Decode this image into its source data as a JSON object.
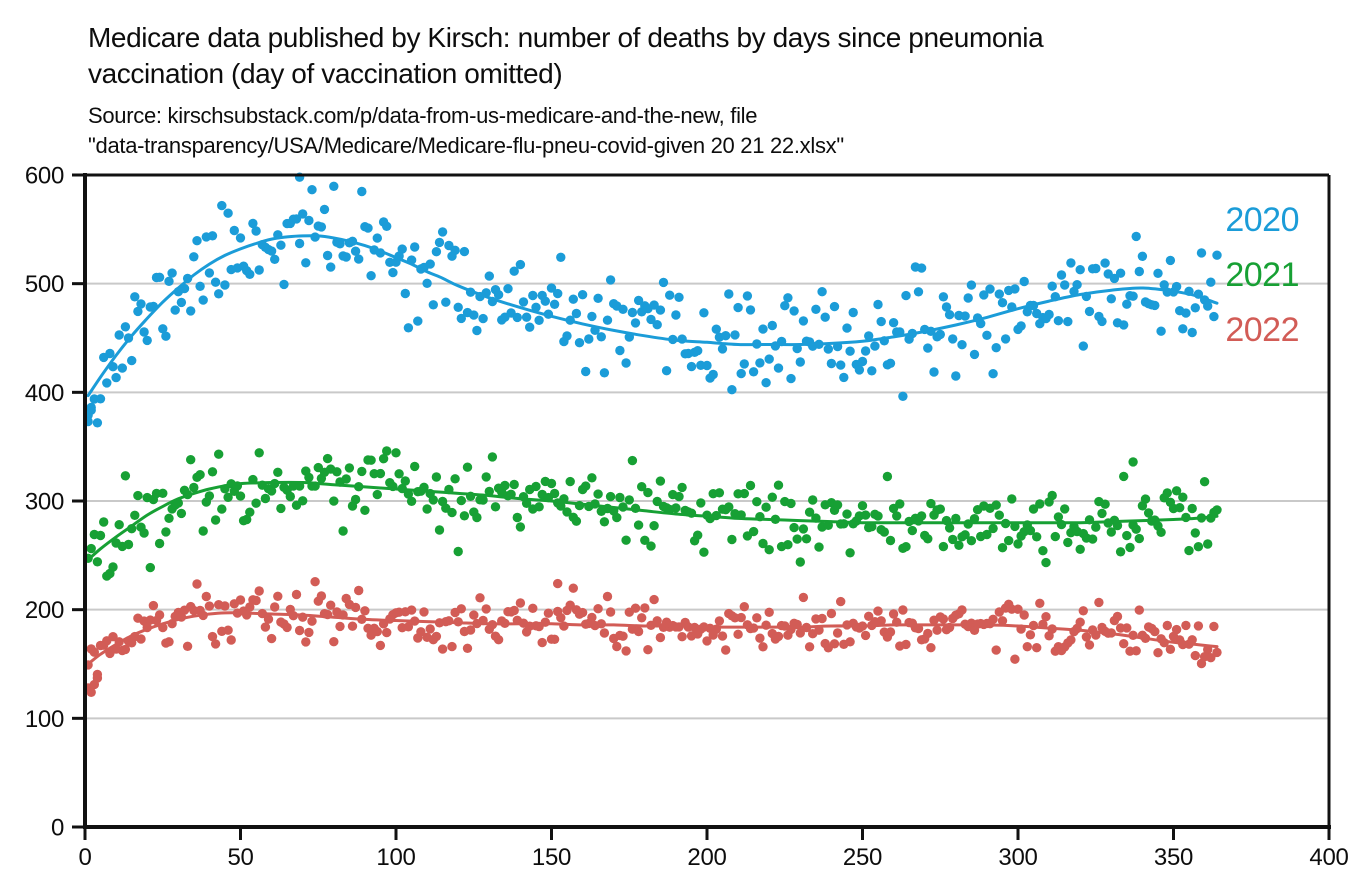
{
  "title": {
    "line1": "Medicare data published by Kirsch: number of deaths by days since pneumonia",
    "line2": "vaccination (day of vaccination omitted)"
  },
  "source": {
    "line1": "Source: kirschsubstack.com/p/data-from-us-medicare-and-the-new, file",
    "line2": "\"data-transparency/USA/Medicare/Medicare-flu-pneu-covid-given 20 21 22.xlsx\""
  },
  "chart_data": {
    "type": "scatter",
    "title": "Medicare data published by Kirsch: number of deaths by days since pneumonia vaccination (day of vaccination omitted)",
    "xlabel": "",
    "ylabel": "",
    "xlim": [
      0,
      400
    ],
    "ylim": [
      0,
      600
    ],
    "x_ticks": [
      0,
      50,
      100,
      150,
      200,
      250,
      300,
      350,
      400
    ],
    "y_ticks": [
      0,
      100,
      200,
      300,
      400,
      500,
      600
    ],
    "grid": "horizontal",
    "grid_color": "#c9c9c9",
    "axis_color": "#111111",
    "legend_position": "top-right-inside",
    "day_range": [
      1,
      364
    ],
    "series": [
      {
        "name": "2020",
        "color": "#1b9cd8",
        "trend_x": [
          1,
          5,
          10,
          15,
          20,
          25,
          30,
          35,
          40,
          45,
          50,
          55,
          60,
          65,
          70,
          75,
          80,
          85,
          90,
          95,
          100,
          105,
          110,
          115,
          120,
          130,
          140,
          150,
          160,
          170,
          180,
          190,
          200,
          210,
          220,
          230,
          240,
          250,
          260,
          270,
          280,
          290,
          300,
          310,
          320,
          330,
          340,
          350,
          357,
          364
        ],
        "trend_y": [
          397,
          414,
          434,
          452,
          468,
          483,
          496,
          508,
          518,
          526,
          532,
          537,
          541,
          543,
          544,
          544,
          542,
          539,
          535,
          530,
          524,
          518,
          511,
          505,
          498,
          487,
          478,
          470,
          463,
          457,
          452,
          448,
          446,
          444,
          444,
          444,
          445,
          447,
          451,
          456,
          462,
          469,
          477,
          484,
          490,
          494,
          496,
          493,
          489,
          482
        ],
        "noise_sd": 21,
        "seed": 11,
        "clip": [
          372,
          599
        ],
        "extra_points": [
          [
            1,
            379
          ],
          [
            2,
            386
          ],
          [
            69,
            598
          ]
        ]
      },
      {
        "name": "2021",
        "color": "#17a034",
        "trend_x": [
          1,
          5,
          10,
          15,
          20,
          25,
          30,
          35,
          40,
          45,
          50,
          60,
          70,
          80,
          90,
          100,
          110,
          120,
          130,
          140,
          150,
          160,
          170,
          180,
          190,
          200,
          210,
          220,
          230,
          240,
          250,
          260,
          270,
          280,
          290,
          300,
          310,
          320,
          330,
          340,
          350,
          357,
          364
        ],
        "trend_y": [
          246,
          256,
          267,
          277,
          287,
          295,
          302,
          307,
          311,
          314,
          316,
          317,
          317,
          315,
          313,
          311,
          309,
          307,
          305,
          302,
          300,
          297,
          294,
          291,
          288,
          286,
          284,
          283,
          282,
          281,
          280,
          280,
          280,
          280,
          280,
          280,
          280,
          280,
          281,
          282,
          283,
          284,
          286
        ],
        "noise_sd": 16,
        "seed": 22,
        "clip": [
          230,
          346
        ],
        "extra_points": [
          [
            337,
            336
          ]
        ]
      },
      {
        "name": "2022",
        "color": "#d25c56",
        "trend_x": [
          1,
          5,
          10,
          15,
          20,
          25,
          30,
          35,
          40,
          45,
          50,
          60,
          70,
          80,
          90,
          100,
          110,
          120,
          130,
          140,
          150,
          160,
          170,
          180,
          190,
          200,
          210,
          220,
          230,
          240,
          250,
          260,
          270,
          280,
          290,
          300,
          310,
          320,
          330,
          340,
          350,
          357,
          364
        ],
        "trend_y": [
          150,
          159,
          168,
          176,
          182,
          187,
          191,
          194,
          196,
          197,
          197,
          196,
          195,
          193,
          191,
          190,
          189,
          188,
          187,
          187,
          187,
          186,
          186,
          185,
          185,
          184,
          184,
          184,
          184,
          185,
          185,
          186,
          186,
          186,
          186,
          185,
          183,
          181,
          178,
          174,
          170,
          168,
          166
        ],
        "noise_sd": 12,
        "seed": 33,
        "clip": [
          122,
          232
        ],
        "extra_points": [
          [
            1,
            128
          ],
          [
            2,
            124
          ],
          [
            3,
            131
          ],
          [
            4,
            137
          ],
          [
            152,
            224
          ]
        ]
      }
    ]
  }
}
